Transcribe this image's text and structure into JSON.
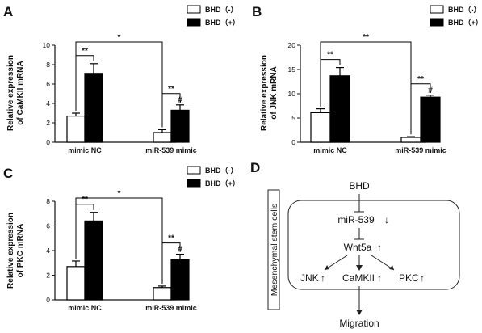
{
  "chart_data": [
    {
      "panel": "A",
      "type": "bar",
      "ylabel": [
        "Relative expression",
        "of CaMKII mRNA"
      ],
      "ylim": [
        0,
        10
      ],
      "yticks": [
        0,
        2,
        4,
        6,
        8,
        10
      ],
      "categories": [
        "mimic NC",
        "miR-539 mimic"
      ],
      "series": [
        {
          "name": "BHD（-）",
          "values": [
            2.7,
            1.0
          ],
          "errors": [
            0.3,
            0.3
          ]
        },
        {
          "name": "BHD（+）",
          "values": [
            7.1,
            3.3
          ],
          "errors": [
            1.0,
            0.55
          ]
        }
      ],
      "brackets": [
        {
          "from": [
            0,
            0
          ],
          "to": [
            0,
            1
          ],
          "label": "**"
        },
        {
          "from": [
            1,
            0
          ],
          "to": [
            1,
            1
          ],
          "label": "**"
        },
        {
          "from": [
            0,
            0
          ],
          "to": [
            1,
            0
          ],
          "label": "*"
        }
      ],
      "hash_on": [
        1,
        1
      ],
      "legend": "top-right"
    },
    {
      "panel": "B",
      "type": "bar",
      "ylabel": [
        "Relative expression",
        "of JNK mRNA"
      ],
      "ylim": [
        0,
        20
      ],
      "yticks": [
        0,
        5,
        10,
        15,
        20
      ],
      "categories": [
        "mimic NC",
        "miR-539 mimic"
      ],
      "series": [
        {
          "name": "BHD（-）",
          "values": [
            6.1,
            1.0
          ],
          "errors": [
            0.8,
            0.15
          ]
        },
        {
          "name": "BHD（+）",
          "values": [
            13.7,
            9.3
          ],
          "errors": [
            1.7,
            0.4
          ]
        }
      ],
      "brackets": [
        {
          "from": [
            0,
            0
          ],
          "to": [
            0,
            1
          ],
          "label": "**"
        },
        {
          "from": [
            1,
            0
          ],
          "to": [
            1,
            1
          ],
          "label": "**"
        },
        {
          "from": [
            0,
            0
          ],
          "to": [
            1,
            0
          ],
          "label": "**"
        }
      ],
      "hash_on": [
        1,
        1
      ],
      "legend": "top-right"
    },
    {
      "panel": "C",
      "type": "bar",
      "ylabel": [
        "Relative expression",
        "of PKC mRNA"
      ],
      "ylim": [
        0,
        8
      ],
      "yticks": [
        0,
        2,
        4,
        6,
        8
      ],
      "categories": [
        "mimic NC",
        "miR-539 mimic"
      ],
      "series": [
        {
          "name": "BHD（-）",
          "values": [
            2.7,
            1.0
          ],
          "errors": [
            0.45,
            0.12
          ]
        },
        {
          "name": "BHD（+）",
          "values": [
            6.4,
            3.25
          ],
          "errors": [
            0.7,
            0.45
          ]
        }
      ],
      "brackets": [
        {
          "from": [
            0,
            0
          ],
          "to": [
            0,
            1
          ],
          "label": "**"
        },
        {
          "from": [
            1,
            0
          ],
          "to": [
            1,
            1
          ],
          "label": "**"
        },
        {
          "from": [
            0,
            0
          ],
          "to": [
            1,
            0
          ],
          "label": "*"
        }
      ],
      "hash_on": [
        1,
        1
      ],
      "legend": "top-right"
    }
  ],
  "labels": {
    "hash": "#"
  },
  "diagram": {
    "panel": "D",
    "side_label": "Mesenchymal stem cells",
    "bhd": "BHD",
    "mir": "miR-539",
    "wnt": "Wnt5a",
    "jnk": "JNK",
    "camk": "CaMKII",
    "pkc": "PKC",
    "migration": "Migration",
    "down_arrow": "↓",
    "up_arrow": "↑"
  }
}
